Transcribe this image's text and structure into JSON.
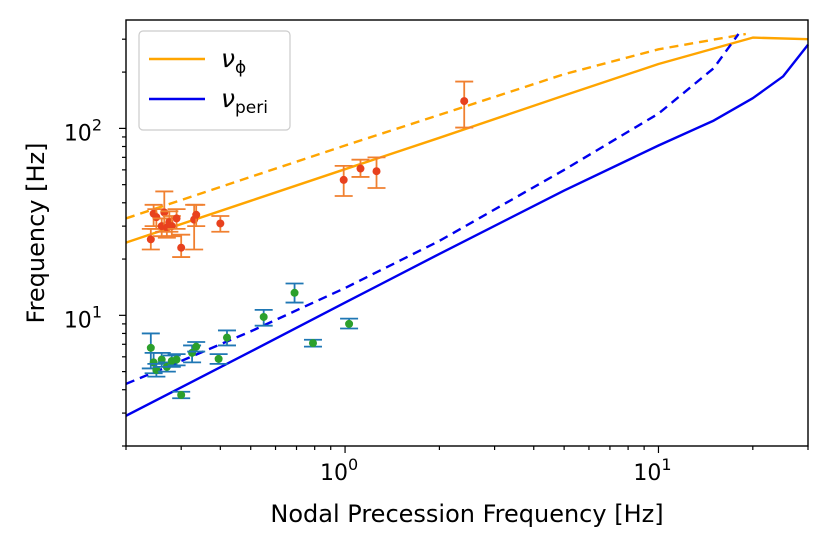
{
  "chart_data": {
    "type": "scatter",
    "title": "",
    "xlabel": "Nodal Precession Frequency [Hz]",
    "ylabel": "Frequency [Hz]",
    "xscale": "log",
    "yscale": "log",
    "xlim": [
      0.2,
      30
    ],
    "ylim": [
      2,
      380
    ],
    "grid": false,
    "legend_position": "upper left",
    "x_ticks": [
      {
        "value": 1,
        "base": "10",
        "exp": "0"
      },
      {
        "value": 10,
        "base": "10",
        "exp": "1"
      }
    ],
    "y_ticks": [
      {
        "value": 10,
        "base": "10",
        "exp": "1"
      },
      {
        "value": 100,
        "base": "10",
        "exp": "2"
      }
    ],
    "legend": [
      {
        "symbol": "ν",
        "sub": "ϕ",
        "color": "#ffa500"
      },
      {
        "symbol": "ν",
        "sub": "peri",
        "color": "#0000ee"
      }
    ],
    "series": [
      {
        "name": "nu_phi_solid",
        "kind": "line",
        "style": "solid",
        "color": "#ffa500",
        "x": [
          0.2,
          0.5,
          1,
          2,
          5,
          10,
          20,
          30
        ],
        "y": [
          24.5,
          41,
          60.5,
          89,
          150,
          221,
          306,
          300
        ]
      },
      {
        "name": "nu_phi_dashed",
        "kind": "line",
        "style": "dashed",
        "color": "#ffa500",
        "x": [
          0.2,
          0.5,
          1,
          2,
          5,
          10,
          19
        ],
        "y": [
          33,
          55,
          81,
          118,
          195,
          265,
          320
        ]
      },
      {
        "name": "nu_peri_solid",
        "kind": "line",
        "style": "solid",
        "color": "#0000ee",
        "x": [
          0.2,
          0.5,
          1,
          2,
          5,
          10,
          15,
          20,
          25,
          30
        ],
        "y": [
          2.9,
          6.4,
          11.7,
          21.3,
          46.5,
          81,
          110,
          145,
          190,
          280
        ]
      },
      {
        "name": "nu_peri_dashed",
        "kind": "line",
        "style": "dashed",
        "color": "#0000ee",
        "x": [
          0.2,
          0.3,
          0.5,
          1,
          2,
          5,
          10,
          15,
          18
        ],
        "y": [
          4.3,
          5.7,
          8.2,
          14,
          25,
          60,
          120,
          210,
          320
        ]
      },
      {
        "name": "phi_points",
        "kind": "errorbar",
        "marker": "#e8411e",
        "ecolor": "#f08030",
        "points": [
          {
            "x": 0.24,
            "y": 25.5,
            "lo": 22.5,
            "hi": 29
          },
          {
            "x": 0.245,
            "y": 35,
            "lo": 30,
            "hi": 39
          },
          {
            "x": 0.25,
            "y": 33.5,
            "lo": 29,
            "hi": 37
          },
          {
            "x": 0.26,
            "y": 30,
            "lo": 26.5,
            "hi": 33
          },
          {
            "x": 0.265,
            "y": 35.5,
            "lo": 28,
            "hi": 46
          },
          {
            "x": 0.27,
            "y": 29.5,
            "lo": 26,
            "hi": 33
          },
          {
            "x": 0.275,
            "y": 31.5,
            "lo": 28,
            "hi": 36
          },
          {
            "x": 0.28,
            "y": 30,
            "lo": 26.5,
            "hi": 34
          },
          {
            "x": 0.29,
            "y": 33,
            "lo": 29,
            "hi": 37
          },
          {
            "x": 0.3,
            "y": 23,
            "lo": 20.5,
            "hi": 27
          },
          {
            "x": 0.33,
            "y": 32.5,
            "lo": 22.5,
            "hi": 39
          },
          {
            "x": 0.335,
            "y": 34.5,
            "lo": 30,
            "hi": 39
          },
          {
            "x": 0.4,
            "y": 31,
            "lo": 28,
            "hi": 34
          },
          {
            "x": 0.99,
            "y": 53,
            "lo": 43.5,
            "hi": 63
          },
          {
            "x": 1.12,
            "y": 61,
            "lo": 55,
            "hi": 68
          },
          {
            "x": 1.26,
            "y": 59,
            "lo": 48,
            "hi": 70
          },
          {
            "x": 2.4,
            "y": 140,
            "lo": 101,
            "hi": 178
          }
        ]
      },
      {
        "name": "peri_points",
        "kind": "errorbar",
        "marker": "#2ca02c",
        "ecolor": "#1f77b4",
        "points": [
          {
            "x": 0.24,
            "y": 6.7,
            "lo": 5.2,
            "hi": 8
          },
          {
            "x": 0.245,
            "y": 5.6,
            "lo": 4.9,
            "hi": 6.3
          },
          {
            "x": 0.25,
            "y": 5.1,
            "lo": 4.7,
            "hi": 5.5
          },
          {
            "x": 0.26,
            "y": 5.8,
            "lo": 5.3,
            "hi": 6.3
          },
          {
            "x": 0.27,
            "y": 5.3,
            "lo": 5,
            "hi": 5.6
          },
          {
            "x": 0.28,
            "y": 5.7,
            "lo": 5.3,
            "hi": 6.1
          },
          {
            "x": 0.29,
            "y": 5.8,
            "lo": 5.4,
            "hi": 6.2
          },
          {
            "x": 0.3,
            "y": 3.75,
            "lo": 3.6,
            "hi": 3.9
          },
          {
            "x": 0.325,
            "y": 6.3,
            "lo": 5.6,
            "hi": 6.9
          },
          {
            "x": 0.335,
            "y": 6.8,
            "lo": 6.4,
            "hi": 7.2
          },
          {
            "x": 0.395,
            "y": 5.85,
            "lo": 5.5,
            "hi": 6.2
          },
          {
            "x": 0.42,
            "y": 7.6,
            "lo": 6.9,
            "hi": 8.3
          },
          {
            "x": 0.55,
            "y": 9.8,
            "lo": 8.8,
            "hi": 10.7
          },
          {
            "x": 0.69,
            "y": 13.2,
            "lo": 11.7,
            "hi": 14.8
          },
          {
            "x": 0.79,
            "y": 7.1,
            "lo": 6.8,
            "hi": 7.4
          },
          {
            "x": 1.03,
            "y": 9,
            "lo": 8.5,
            "hi": 9.6
          }
        ]
      }
    ]
  }
}
